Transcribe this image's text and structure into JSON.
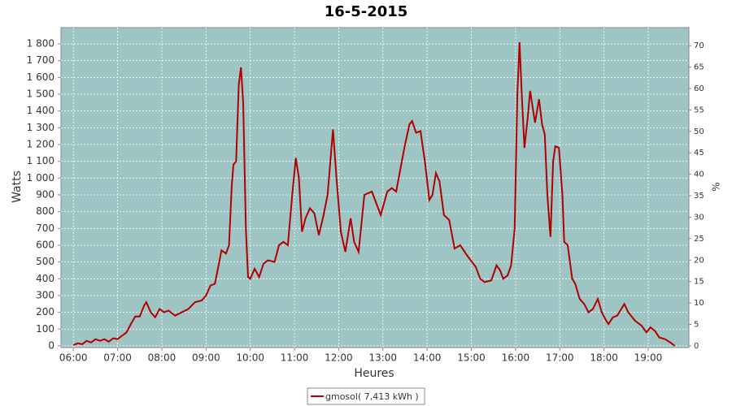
{
  "chart_data": {
    "type": "line",
    "title": "16-5-2015",
    "x_label": "Heures",
    "y_label": "Watts",
    "y2_label": "%",
    "x": [
      6.0,
      6.1,
      6.2,
      6.3,
      6.4,
      6.5,
      6.6,
      6.7,
      6.8,
      6.9,
      7.0,
      7.1,
      7.2,
      7.3,
      7.4,
      7.5,
      7.6,
      7.65,
      7.75,
      7.85,
      7.95,
      8.05,
      8.15,
      8.3,
      8.45,
      8.6,
      8.75,
      8.9,
      9.0,
      9.1,
      9.2,
      9.3,
      9.35,
      9.45,
      9.52,
      9.58,
      9.62,
      9.68,
      9.74,
      9.79,
      9.84,
      9.9,
      9.95,
      10.0,
      10.1,
      10.2,
      10.3,
      10.4,
      10.55,
      10.65,
      10.75,
      10.85,
      10.95,
      11.03,
      11.1,
      11.17,
      11.25,
      11.35,
      11.45,
      11.55,
      11.65,
      11.75,
      11.87,
      11.95,
      12.05,
      12.15,
      12.27,
      12.35,
      12.45,
      12.58,
      12.75,
      12.95,
      13.1,
      13.2,
      13.3,
      13.4,
      13.5,
      13.6,
      13.66,
      13.75,
      13.85,
      13.95,
      14.05,
      14.12,
      14.2,
      14.28,
      14.38,
      14.5,
      14.62,
      14.75,
      14.9,
      15.1,
      15.2,
      15.3,
      15.45,
      15.57,
      15.65,
      15.72,
      15.82,
      15.9,
      15.98,
      16.04,
      16.09,
      16.14,
      16.2,
      16.27,
      16.33,
      16.44,
      16.53,
      16.6,
      16.66,
      16.72,
      16.79,
      16.85,
      16.9,
      16.98,
      17.06,
      17.1,
      17.18,
      17.28,
      17.35,
      17.45,
      17.55,
      17.65,
      17.75,
      17.86,
      17.95,
      18.05,
      18.1,
      18.2,
      18.3,
      18.46,
      18.55,
      18.7,
      18.85,
      18.96,
      19.05,
      19.15,
      19.25,
      19.38,
      19.5,
      19.6
    ],
    "series": [
      {
        "name": "gmosol( 7,413 kWh )",
        "color": "#b00000",
        "values": [
          5,
          15,
          10,
          30,
          20,
          40,
          30,
          40,
          25,
          45,
          40,
          60,
          80,
          130,
          175,
          175,
          240,
          260,
          200,
          170,
          220,
          200,
          210,
          180,
          200,
          220,
          260,
          270,
          300,
          360,
          370,
          500,
          570,
          550,
          600,
          950,
          1080,
          1100,
          1560,
          1660,
          1450,
          700,
          410,
          400,
          460,
          410,
          490,
          510,
          500,
          600,
          620,
          600,
          900,
          1120,
          1000,
          680,
          760,
          820,
          790,
          660,
          770,
          900,
          1290,
          1000,
          680,
          560,
          760,
          620,
          560,
          900,
          920,
          780,
          920,
          940,
          920,
          1060,
          1200,
          1320,
          1340,
          1270,
          1280,
          1100,
          870,
          900,
          1030,
          980,
          780,
          750,
          580,
          600,
          540,
          470,
          400,
          380,
          390,
          480,
          450,
          400,
          420,
          480,
          700,
          1500,
          1810,
          1500,
          1180,
          1350,
          1520,
          1330,
          1470,
          1320,
          1260,
          900,
          650,
          1100,
          1190,
          1180,
          900,
          620,
          600,
          400,
          370,
          280,
          250,
          200,
          220,
          280,
          200,
          150,
          130,
          170,
          180,
          250,
          200,
          150,
          120,
          80,
          110,
          90,
          50,
          40,
          20,
          0
        ]
      }
    ],
    "xlim": [
      5.72,
      19.92
    ],
    "xticks": [
      {
        "value": 6,
        "label": "06:00"
      },
      {
        "value": 7,
        "label": "07:00"
      },
      {
        "value": 8,
        "label": "08:00"
      },
      {
        "value": 9,
        "label": "09:00"
      },
      {
        "value": 10,
        "label": "10:00"
      },
      {
        "value": 11,
        "label": "11:00"
      },
      {
        "value": 12,
        "label": "12:00"
      },
      {
        "value": 13,
        "label": "13:00"
      },
      {
        "value": 14,
        "label": "14:00"
      },
      {
        "value": 15,
        "label": "15:00"
      },
      {
        "value": 16,
        "label": "16:00"
      },
      {
        "value": 17,
        "label": "17:00"
      },
      {
        "value": 18,
        "label": "18:00"
      },
      {
        "value": 19,
        "label": "19:00"
      }
    ],
    "ylim": [
      -10,
      1897
    ],
    "yticks": [
      0,
      100,
      200,
      300,
      400,
      500,
      600,
      700,
      800,
      900,
      {
        "value": 1000,
        "label": "1 000"
      },
      {
        "value": 1100,
        "label": "1 100"
      },
      {
        "value": 1200,
        "label": "1 200"
      },
      {
        "value": 1300,
        "label": "1 300"
      },
      {
        "value": 1400,
        "label": "1 400"
      },
      {
        "value": 1500,
        "label": "1 500"
      },
      {
        "value": 1600,
        "label": "1 600"
      },
      {
        "value": 1700,
        "label": "1 700"
      },
      {
        "value": 1800,
        "label": "1 800"
      }
    ],
    "y2lim": [
      -0.4,
      74.2
    ],
    "y2ticks": [
      0,
      5,
      10,
      15,
      20,
      25,
      30,
      35,
      40,
      45,
      50,
      55,
      60,
      65,
      70
    ],
    "grid": true,
    "legend": "bottom",
    "background": "#9fc4c4"
  }
}
